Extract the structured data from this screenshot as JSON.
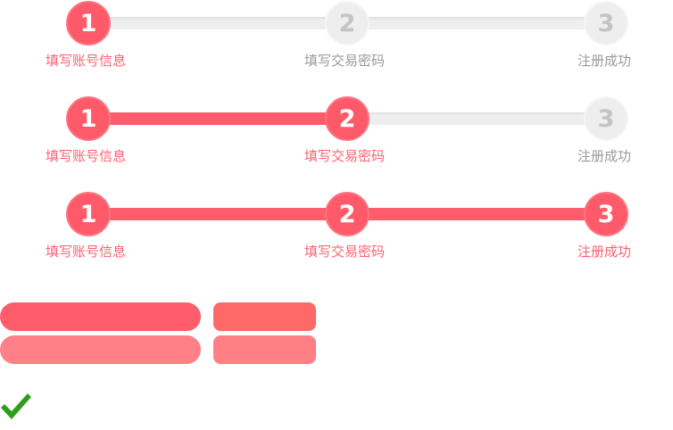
{
  "colors": {
    "accent": "#ff5a6a",
    "inactive_circle": "#eeeeee",
    "inactive_number": "#c4c4c4",
    "inactive_label": "#999999",
    "button_primary": "#ff5d6c",
    "button_primary_light": "#ff8086",
    "button_secondary": "#ff6a68",
    "button_secondary_light": "#ff7f84",
    "check": "#2e9e1a"
  },
  "steppers": [
    {
      "current_step": 1,
      "steps": [
        {
          "number": "1",
          "label": "填写账号信息"
        },
        {
          "number": "2",
          "label": "填写交易密码"
        },
        {
          "number": "3",
          "label": "注册成功"
        }
      ]
    },
    {
      "current_step": 2,
      "steps": [
        {
          "number": "1",
          "label": "填写账号信息"
        },
        {
          "number": "2",
          "label": "填写交易密码"
        },
        {
          "number": "3",
          "label": "注册成功"
        }
      ]
    },
    {
      "current_step": 3,
      "steps": [
        {
          "number": "1",
          "label": "填写账号信息"
        },
        {
          "number": "2",
          "label": "填写交易密码"
        },
        {
          "number": "3",
          "label": "注册成功"
        }
      ]
    }
  ],
  "icons": {
    "check": "checkmark-icon"
  }
}
